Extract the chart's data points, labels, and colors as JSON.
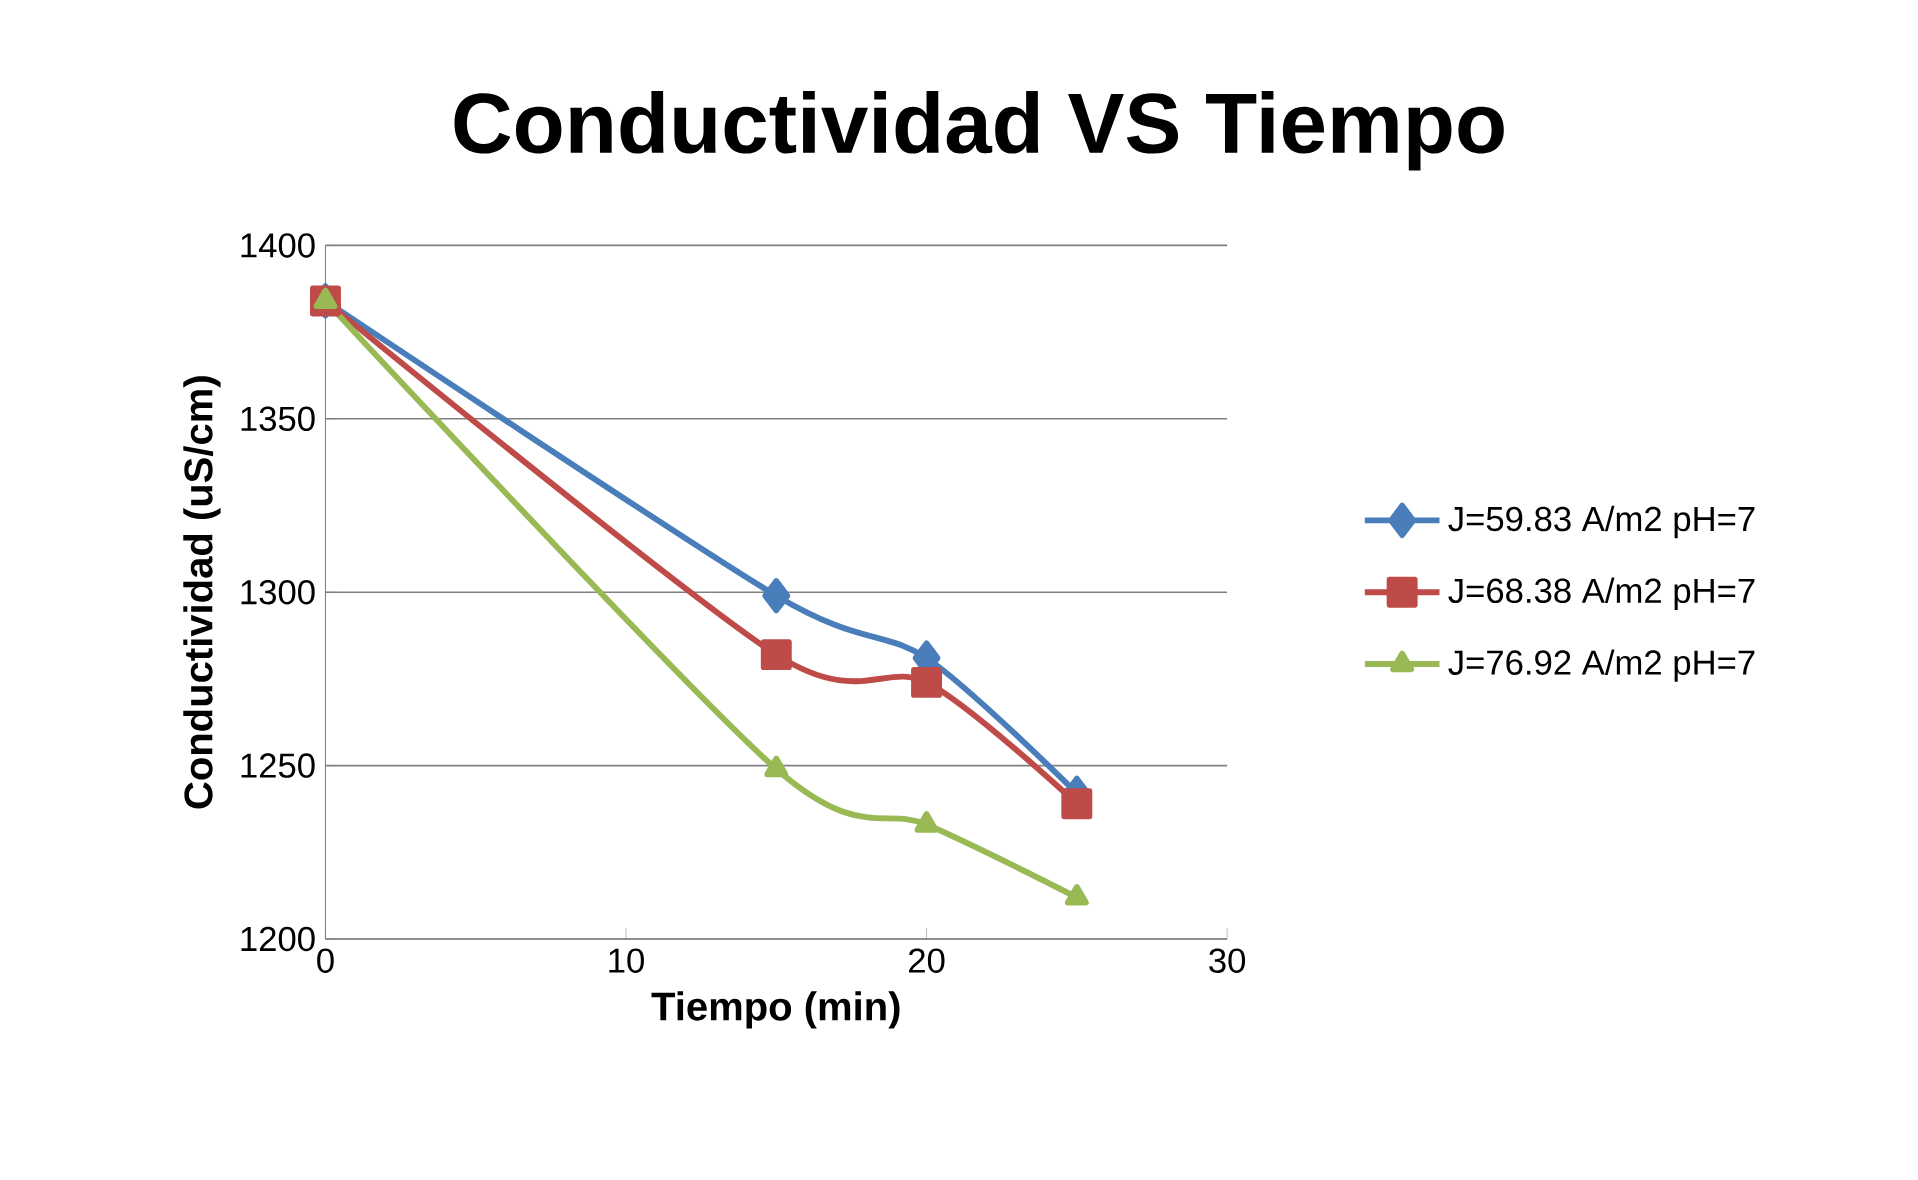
{
  "chart_data": {
    "type": "line",
    "title": "Conductividad VS Tiempo",
    "xlabel": "Tiempo (min)",
    "ylabel": "Conductividad (uS/cm)",
    "x": [
      0,
      15,
      20,
      25
    ],
    "series": [
      {
        "name": "J=59.83 A/m2  pH=7",
        "color": "#4a7ebb",
        "marker": "diamond",
        "values": [
          1384,
          1299,
          1281,
          1242
        ]
      },
      {
        "name": "J=68.38 A/m2  pH=7",
        "color": "#be4b48",
        "marker": "square",
        "values": [
          1384,
          1282,
          1274,
          1239
        ]
      },
      {
        "name": "J=76.92 A/m2  pH=7",
        "color": "#98b954",
        "marker": "triangle",
        "values": [
          1384,
          1249,
          1233,
          1212
        ]
      }
    ],
    "xlim": [
      0,
      30
    ],
    "xticks": [
      0,
      10,
      20,
      30
    ],
    "ylim": [
      1200,
      1400
    ],
    "yticks": [
      1200,
      1250,
      1300,
      1350,
      1400
    ],
    "grid": "y",
    "legend": "right",
    "line_style": "solid"
  }
}
